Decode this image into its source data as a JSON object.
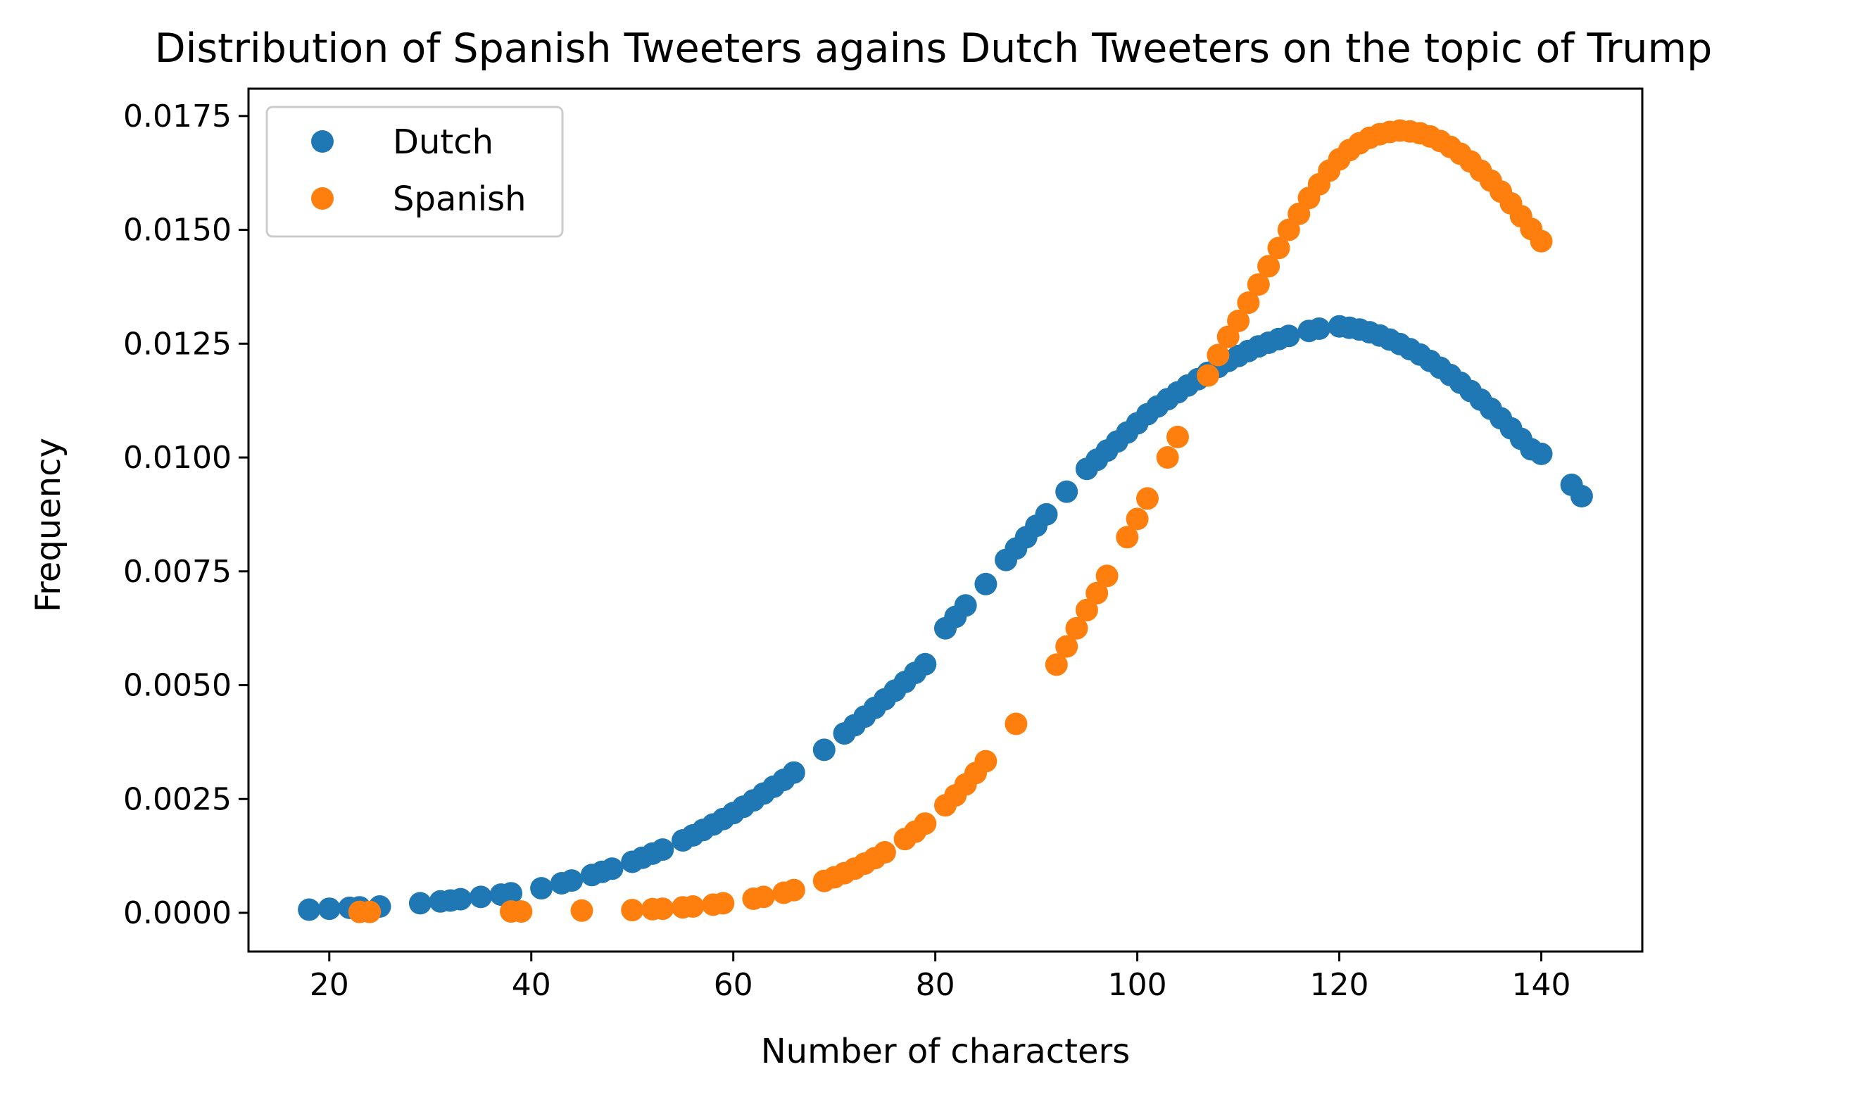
{
  "chart_data": {
    "type": "scatter",
    "title": "Distribution of Spanish Tweeters agains Dutch Tweeters on the topic of Trump",
    "xlabel": "Number of characters",
    "ylabel": "Frequency",
    "xlim": [
      12,
      150
    ],
    "ylim": [
      -0.00085,
      0.0181
    ],
    "xticks": [
      20,
      40,
      60,
      80,
      100,
      120,
      140
    ],
    "xtick_labels": [
      "20",
      "40",
      "60",
      "80",
      "100",
      "120",
      "140"
    ],
    "yticks": [
      0,
      0.0025,
      0.005,
      0.0075,
      0.01,
      0.0125,
      0.015,
      0.0175
    ],
    "ytick_labels": [
      "0.0000",
      "0.0025",
      "0.0050",
      "0.0075",
      "0.0100",
      "0.0125",
      "0.0150",
      "0.0175"
    ],
    "legend": {
      "placement": "top-left"
    },
    "grid": false,
    "series": [
      {
        "name": "Dutch",
        "color": "#1f77b4",
        "x": [
          18,
          20,
          22,
          23,
          25,
          29,
          31,
          32,
          33,
          35,
          37,
          38,
          41,
          43,
          44,
          46,
          47,
          48,
          50,
          51,
          52,
          53,
          55,
          56,
          57,
          58,
          59,
          60,
          61,
          62,
          63,
          64,
          65,
          66,
          69,
          71,
          72,
          73,
          74,
          75,
          76,
          77,
          78,
          79,
          81,
          82,
          83,
          85,
          87,
          88,
          89,
          90,
          91,
          93,
          95,
          96,
          97,
          98,
          99,
          100,
          101,
          102,
          103,
          104,
          105,
          106,
          107,
          108,
          109,
          110,
          111,
          112,
          113,
          114,
          115,
          117,
          118,
          120,
          121,
          122,
          123,
          124,
          125,
          126,
          127,
          128,
          129,
          130,
          131,
          132,
          133,
          134,
          135,
          136,
          137,
          138,
          139,
          140,
          143,
          144
        ],
        "y": [
          7e-05,
          9e-05,
          0.00011,
          0.00012,
          0.00014,
          0.00021,
          0.00025,
          0.00027,
          0.0003,
          0.00035,
          0.0004,
          0.00043,
          0.00054,
          0.00065,
          0.00071,
          0.00083,
          0.0009,
          0.00097,
          0.00112,
          0.00121,
          0.0013,
          0.00139,
          0.00159,
          0.0017,
          0.00182,
          0.00194,
          0.00206,
          0.00219,
          0.00233,
          0.00247,
          0.00262,
          0.00277,
          0.00292,
          0.00308,
          0.00358,
          0.00394,
          0.00412,
          0.00431,
          0.0045,
          0.00469,
          0.00488,
          0.00507,
          0.00527,
          0.00546,
          0.00625,
          0.0065,
          0.00675,
          0.00722,
          0.00775,
          0.008,
          0.00825,
          0.0085,
          0.00875,
          0.00925,
          0.00975,
          0.00995,
          0.01015,
          0.01035,
          0.01055,
          0.01075,
          0.01095,
          0.01112,
          0.01128,
          0.01143,
          0.01158,
          0.01172,
          0.01186,
          0.01199,
          0.01212,
          0.01223,
          0.01234,
          0.01244,
          0.01252,
          0.0126,
          0.01267,
          0.01278,
          0.01283,
          0.01288,
          0.01285,
          0.01281,
          0.01275,
          0.01268,
          0.01259,
          0.01249,
          0.01238,
          0.01226,
          0.01212,
          0.01197,
          0.01181,
          0.01164,
          0.01146,
          0.01127,
          0.01107,
          0.01086,
          0.01064,
          0.01041,
          0.01018,
          0.01008,
          0.0094,
          0.00915
        ]
      },
      {
        "name": "Spanish",
        "color": "#ff7f0e",
        "x": [
          23,
          24,
          38,
          39,
          45,
          50,
          52,
          53,
          55,
          56,
          58,
          59,
          62,
          63,
          65,
          66,
          69,
          70,
          71,
          72,
          73,
          74,
          75,
          77,
          78,
          79,
          81,
          82,
          83,
          84,
          85,
          88,
          92,
          93,
          94,
          95,
          96,
          97,
          99,
          100,
          101,
          103,
          104,
          107,
          108,
          109,
          110,
          111,
          112,
          113,
          114,
          115,
          116,
          117,
          118,
          119,
          120,
          121,
          122,
          123,
          124,
          125,
          126,
          127,
          128,
          129,
          130,
          131,
          132,
          133,
          134,
          135,
          136,
          137,
          138,
          139,
          140
        ],
        "y": [
          2e-05,
          2e-05,
          3e-05,
          3e-05,
          5e-05,
          6e-05,
          8e-05,
          9e-05,
          0.00012,
          0.00014,
          0.00018,
          0.00021,
          0.00031,
          0.00035,
          0.00044,
          0.0005,
          0.0007,
          0.00078,
          0.00087,
          0.00097,
          0.00108,
          0.0012,
          0.00133,
          0.00162,
          0.00178,
          0.00196,
          0.00236,
          0.00258,
          0.00282,
          0.00307,
          0.00333,
          0.00415,
          0.00545,
          0.00585,
          0.00625,
          0.00665,
          0.00702,
          0.0074,
          0.00825,
          0.00865,
          0.0091,
          0.01,
          0.01045,
          0.0118,
          0.01225,
          0.01265,
          0.013,
          0.0134,
          0.0138,
          0.0142,
          0.0146,
          0.015,
          0.01535,
          0.0157,
          0.016,
          0.0163,
          0.01655,
          0.01675,
          0.0169,
          0.01702,
          0.0171,
          0.01715,
          0.01718,
          0.01716,
          0.01712,
          0.01705,
          0.01695,
          0.01682,
          0.01667,
          0.0165,
          0.0163,
          0.01608,
          0.01584,
          0.01558,
          0.0153,
          0.01502,
          0.01475
        ]
      }
    ]
  }
}
